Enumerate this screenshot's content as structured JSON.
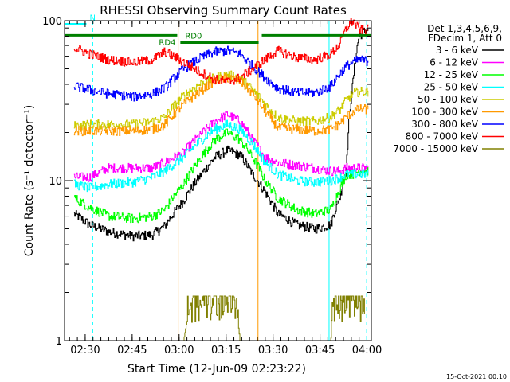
{
  "chart_data": {
    "type": "line",
    "title": "RHESSI Observing Summary Count Rates",
    "xlabel": "Start Time (12-Jun-09 02:23:22)",
    "ylabel": "Count Rate (s⁻¹ detector⁻¹)",
    "yscale": "log",
    "ylim": [
      1,
      100
    ],
    "xlim_minutes": [
      0,
      98
    ],
    "x_ticks": [
      {
        "label": "02:30",
        "minute": 6.6
      },
      {
        "label": "02:45",
        "minute": 21.6
      },
      {
        "label": "03:00",
        "minute": 36.6
      },
      {
        "label": "03:15",
        "minute": 51.6
      },
      {
        "label": "03:30",
        "minute": 66.6
      },
      {
        "label": "03:45",
        "minute": 81.6
      },
      {
        "label": "04:00",
        "minute": 96.6
      }
    ],
    "y_ticks": [
      {
        "label": "1",
        "value": 1
      },
      {
        "label": "10",
        "value": 10
      },
      {
        "label": "100",
        "value": 100
      }
    ],
    "legend": {
      "header": [
        "Det 1,3,4,5,6,9,",
        "FDecim 1, Att 0"
      ],
      "placement": "right"
    },
    "series": [
      {
        "name": "3 - 6 keV",
        "color": "#000000",
        "x": [
          3,
          8,
          14,
          22,
          28,
          32,
          38,
          43,
          48,
          52,
          56,
          60,
          64,
          68,
          74,
          80,
          85,
          88,
          90,
          92,
          94,
          97
        ],
        "y": [
          6.2,
          5.3,
          4.8,
          4.5,
          4.6,
          5.2,
          7.5,
          10.5,
          14,
          15.5,
          14.5,
          11,
          8.5,
          6.2,
          5.3,
          5.0,
          5.3,
          8,
          12,
          40,
          80,
          90
        ]
      },
      {
        "name": "6 - 12 keV",
        "color": "#ff00ff",
        "x": [
          3,
          8,
          14,
          22,
          28,
          32,
          38,
          43,
          48,
          52,
          56,
          60,
          64,
          68,
          74,
          80,
          85,
          88,
          90,
          92,
          94,
          97
        ],
        "y": [
          10.5,
          10.5,
          12,
          12,
          12,
          13,
          15,
          19,
          23.5,
          26,
          23.5,
          18,
          14,
          13,
          12.5,
          12,
          11.5,
          11.5,
          12,
          12,
          12,
          12
        ]
      },
      {
        "name": "12 - 25 keV",
        "color": "#00ff00",
        "x": [
          3,
          8,
          14,
          22,
          28,
          32,
          38,
          43,
          48,
          52,
          56,
          60,
          64,
          68,
          74,
          80,
          85,
          88,
          90,
          92,
          94,
          97
        ],
        "y": [
          7.8,
          6.8,
          6.0,
          5.8,
          6.0,
          6.6,
          9.5,
          13.5,
          18,
          20,
          18,
          14,
          10,
          7.8,
          6.6,
          6.2,
          6.6,
          9,
          11,
          11,
          11.5,
          11.5
        ]
      },
      {
        "name": "25 - 50 keV",
        "color": "#00ffff",
        "x": [
          3,
          8,
          14,
          22,
          28,
          32,
          38,
          43,
          48,
          52,
          56,
          60,
          64,
          68,
          74,
          80,
          85,
          88,
          90,
          92,
          94,
          97
        ],
        "y": [
          9.5,
          9.0,
          9.5,
          9.8,
          10.5,
          11.5,
          14,
          17.5,
          21,
          22.5,
          21,
          17,
          13,
          11,
          10,
          9.8,
          10,
          10.5,
          11,
          11,
          11,
          11
        ]
      },
      {
        "name": "50 - 100 keV",
        "color": "#cccc00",
        "x": [
          3,
          8,
          14,
          22,
          28,
          32,
          38,
          43,
          48,
          52,
          56,
          60,
          64,
          68,
          74,
          80,
          85,
          88,
          90,
          92,
          94,
          97
        ],
        "y": [
          22,
          22.5,
          22.5,
          22.5,
          23.5,
          25,
          34,
          40,
          44,
          46,
          44,
          37,
          30,
          25,
          23.5,
          23.5,
          25,
          28,
          32,
          35,
          36,
          36
        ]
      },
      {
        "name": "100 - 300 keV",
        "color": "#ff9900",
        "x": [
          3,
          8,
          14,
          22,
          28,
          32,
          38,
          43,
          48,
          52,
          56,
          60,
          64,
          68,
          74,
          80,
          85,
          88,
          90,
          92,
          94,
          97
        ],
        "y": [
          20.5,
          20.5,
          20.5,
          20.5,
          21,
          22.5,
          30,
          36,
          42,
          44,
          42,
          35,
          27,
          21.5,
          21,
          20.5,
          21,
          23,
          25,
          27,
          28,
          28
        ]
      },
      {
        "name": "300 - 800 keV",
        "color": "#0000ff",
        "x": [
          3,
          8,
          14,
          22,
          28,
          32,
          38,
          43,
          48,
          52,
          56,
          60,
          64,
          68,
          74,
          80,
          85,
          88,
          90,
          92,
          94,
          97
        ],
        "y": [
          39,
          37,
          35,
          33.5,
          35,
          38,
          50,
          58,
          64,
          65,
          62,
          52,
          44,
          38,
          35.5,
          35.5,
          39,
          47,
          52,
          55,
          57,
          56
        ]
      },
      {
        "name": "800 - 7000 keV",
        "color": "#ff0000",
        "x": [
          3,
          8,
          14,
          22,
          28,
          32,
          38,
          43,
          48,
          52,
          56,
          60,
          64,
          68,
          74,
          80,
          85,
          88,
          90,
          92,
          94,
          97
        ],
        "y": [
          68,
          62,
          57,
          55,
          57,
          64,
          55,
          48,
          43,
          41.5,
          44,
          50,
          57,
          65,
          59,
          57,
          62,
          72,
          90,
          100,
          88,
          88
        ]
      },
      {
        "name": "7000 - 15000 keV",
        "color": "#808000",
        "x": [
          34,
          38,
          40,
          41,
          42,
          45,
          48,
          51,
          52,
          54,
          56,
          85,
          86,
          88,
          90,
          92,
          94,
          96
        ],
        "y": [
          1,
          1,
          1.6,
          1.9,
          1.9,
          1.9,
          1.9,
          1.9,
          1.9,
          1.9,
          1,
          1,
          1.9,
          1.9,
          1.9,
          1.9,
          1.9,
          1.9
        ]
      }
    ],
    "annotations": [
      {
        "text": "N",
        "color": "#00ffff",
        "x_start": 0,
        "x_end": 7,
        "value": 95
      },
      {
        "text": "RD4",
        "color": "#008000",
        "x_start": 0,
        "x_end": 36,
        "value": 81
      },
      {
        "text": "RD0",
        "color": "#008000",
        "x_start": 37,
        "x_end": 62,
        "value": 73
      },
      {
        "text": "",
        "color": "#008000",
        "x_start": 63,
        "x_end": 98,
        "value": 81
      }
    ],
    "vertical_markers": [
      {
        "minute": 9.0,
        "color": "#00ffff",
        "style": "dashed"
      },
      {
        "minute": 84.5,
        "color": "#00ffff",
        "style": "solid"
      },
      {
        "minute": 96.5,
        "color": "#00ffff",
        "style": "dashed"
      },
      {
        "minute": 36.3,
        "color": "#ff9900",
        "style": "solid"
      },
      {
        "minute": 61.8,
        "color": "#ff9900",
        "style": "solid"
      }
    ],
    "footer_date": "15-Oct-2021 00:10"
  }
}
